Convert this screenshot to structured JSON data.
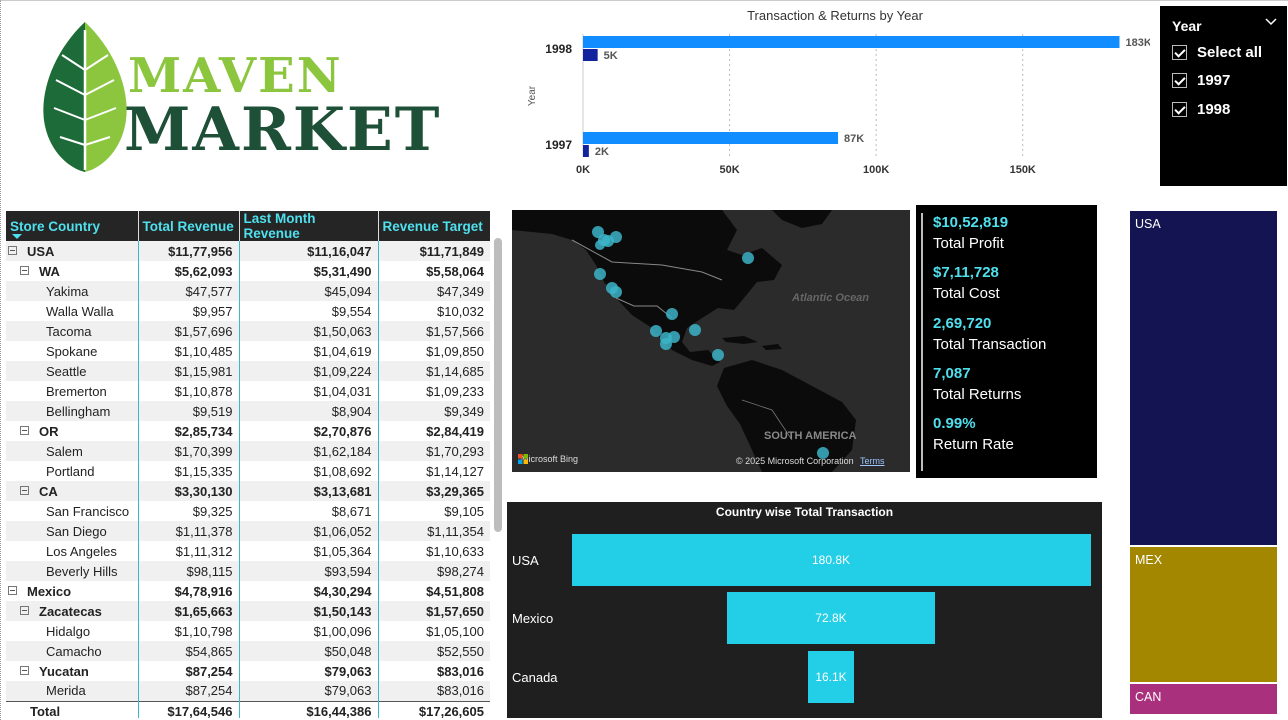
{
  "brand": {
    "line1": "MAVEN",
    "line2": "MARKET"
  },
  "bar_chart": {
    "chart_data": {
      "type": "bar",
      "orientation": "horizontal",
      "title": "Transaction & Returns by Year",
      "ylabel": "Year",
      "categories": [
        "1998",
        "1997"
      ],
      "series": [
        {
          "values": [
            183000,
            87000
          ],
          "color": "#118dff"
        },
        {
          "values": [
            5000,
            2000
          ],
          "color": "#12239e"
        }
      ],
      "data_labels": [
        [
          "183K",
          "5K"
        ],
        [
          "87K",
          "2K"
        ]
      ],
      "xlim": [
        0,
        190000
      ],
      "xticks": [
        "0K",
        "50K",
        "100K",
        "150K"
      ],
      "grid": true
    }
  },
  "slicer": {
    "title": "Year",
    "items": [
      {
        "label": "Select all",
        "checked": true
      },
      {
        "label": "1997",
        "checked": true
      },
      {
        "label": "1998",
        "checked": true
      }
    ]
  },
  "matrix": {
    "headers": [
      "Store Country",
      "Total Revenue",
      "Last Month Revenue",
      "Revenue Target"
    ],
    "rows": [
      {
        "level": 0,
        "expander": true,
        "bold": true,
        "cells": [
          "USA",
          "$11,77,956",
          "$11,16,047",
          "$11,71,849"
        ]
      },
      {
        "level": 1,
        "expander": true,
        "bold": true,
        "cells": [
          "WA",
          "$5,62,093",
          "$5,31,490",
          "$5,58,064"
        ]
      },
      {
        "level": 2,
        "expander": false,
        "bold": false,
        "cells": [
          "Yakima",
          "$47,577",
          "$45,094",
          "$47,349"
        ]
      },
      {
        "level": 2,
        "expander": false,
        "bold": false,
        "cells": [
          "Walla Walla",
          "$9,957",
          "$9,554",
          "$10,032"
        ]
      },
      {
        "level": 2,
        "expander": false,
        "bold": false,
        "cells": [
          "Tacoma",
          "$1,57,696",
          "$1,50,063",
          "$1,57,566"
        ]
      },
      {
        "level": 2,
        "expander": false,
        "bold": false,
        "cells": [
          "Spokane",
          "$1,10,485",
          "$1,04,619",
          "$1,09,850"
        ]
      },
      {
        "level": 2,
        "expander": false,
        "bold": false,
        "cells": [
          "Seattle",
          "$1,15,981",
          "$1,09,224",
          "$1,14,685"
        ]
      },
      {
        "level": 2,
        "expander": false,
        "bold": false,
        "cells": [
          "Bremerton",
          "$1,10,878",
          "$1,04,031",
          "$1,09,233"
        ]
      },
      {
        "level": 2,
        "expander": false,
        "bold": false,
        "cells": [
          "Bellingham",
          "$9,519",
          "$8,904",
          "$9,349"
        ]
      },
      {
        "level": 1,
        "expander": true,
        "bold": true,
        "cells": [
          "OR",
          "$2,85,734",
          "$2,70,876",
          "$2,84,419"
        ]
      },
      {
        "level": 2,
        "expander": false,
        "bold": false,
        "cells": [
          "Salem",
          "$1,70,399",
          "$1,62,184",
          "$1,70,293"
        ]
      },
      {
        "level": 2,
        "expander": false,
        "bold": false,
        "cells": [
          "Portland",
          "$1,15,335",
          "$1,08,692",
          "$1,14,127"
        ]
      },
      {
        "level": 1,
        "expander": true,
        "bold": true,
        "cells": [
          "CA",
          "$3,30,130",
          "$3,13,681",
          "$3,29,365"
        ]
      },
      {
        "level": 2,
        "expander": false,
        "bold": false,
        "cells": [
          "San Francisco",
          "$9,325",
          "$8,671",
          "$9,105"
        ]
      },
      {
        "level": 2,
        "expander": false,
        "bold": false,
        "cells": [
          "San Diego",
          "$1,11,378",
          "$1,06,052",
          "$1,11,354"
        ]
      },
      {
        "level": 2,
        "expander": false,
        "bold": false,
        "cells": [
          "Los Angeles",
          "$1,11,312",
          "$1,05,364",
          "$1,10,633"
        ]
      },
      {
        "level": 2,
        "expander": false,
        "bold": false,
        "cells": [
          "Beverly Hills",
          "$98,115",
          "$93,594",
          "$98,274"
        ]
      },
      {
        "level": 0,
        "expander": true,
        "bold": true,
        "cells": [
          "Mexico",
          "$4,78,916",
          "$4,30,294",
          "$4,51,808"
        ]
      },
      {
        "level": 1,
        "expander": true,
        "bold": true,
        "cells": [
          "Zacatecas",
          "$1,65,663",
          "$1,50,143",
          "$1,57,650"
        ]
      },
      {
        "level": 2,
        "expander": false,
        "bold": false,
        "cells": [
          "Hidalgo",
          "$1,10,798",
          "$1,00,096",
          "$1,05,100"
        ]
      },
      {
        "level": 2,
        "expander": false,
        "bold": false,
        "cells": [
          "Camacho",
          "$54,865",
          "$50,048",
          "$52,550"
        ]
      },
      {
        "level": 1,
        "expander": true,
        "bold": true,
        "cells": [
          "Yucatan",
          "$87,254",
          "$79,063",
          "$83,016"
        ]
      },
      {
        "level": 2,
        "expander": false,
        "bold": false,
        "cells": [
          "Merida",
          "$87,254",
          "$79,063",
          "$83,016"
        ]
      }
    ],
    "total": [
      "Total",
      "$17,64,546",
      "$16,44,386",
      "$17,26,605"
    ]
  },
  "map": {
    "ocean_label": "Atlantic Ocean",
    "continent_label": "SOUTH AMERICA",
    "bing_label": "Microsoft Bing",
    "copyright": "© 2025 Microsoft Corporation",
    "terms": "Terms",
    "marker_color": "#3cb4c8"
  },
  "kpis": [
    {
      "value": "$10,52,819",
      "label": "Total Profit"
    },
    {
      "value": "$7,11,728",
      "label": "Total Cost"
    },
    {
      "value": "2,69,720",
      "label": "Total Transaction"
    },
    {
      "value": "7,087",
      "label": "Total Returns"
    },
    {
      "value": "0.99%",
      "label": "Return Rate"
    }
  ],
  "funnel": {
    "chart_data": {
      "type": "bar",
      "title": "Country wise Total Transaction",
      "categories": [
        "USA",
        "Mexico",
        "Canada"
      ],
      "values": [
        180800,
        72800,
        16100
      ],
      "data_labels": [
        "180.8K",
        "72.8K",
        "16.1K"
      ],
      "color": "#22cfe6"
    }
  },
  "treemap": {
    "items": [
      {
        "label": "USA",
        "color": "#141452"
      },
      {
        "label": "MEX",
        "color": "#a38700"
      },
      {
        "label": "CAN",
        "color": "#a8307c"
      }
    ]
  }
}
